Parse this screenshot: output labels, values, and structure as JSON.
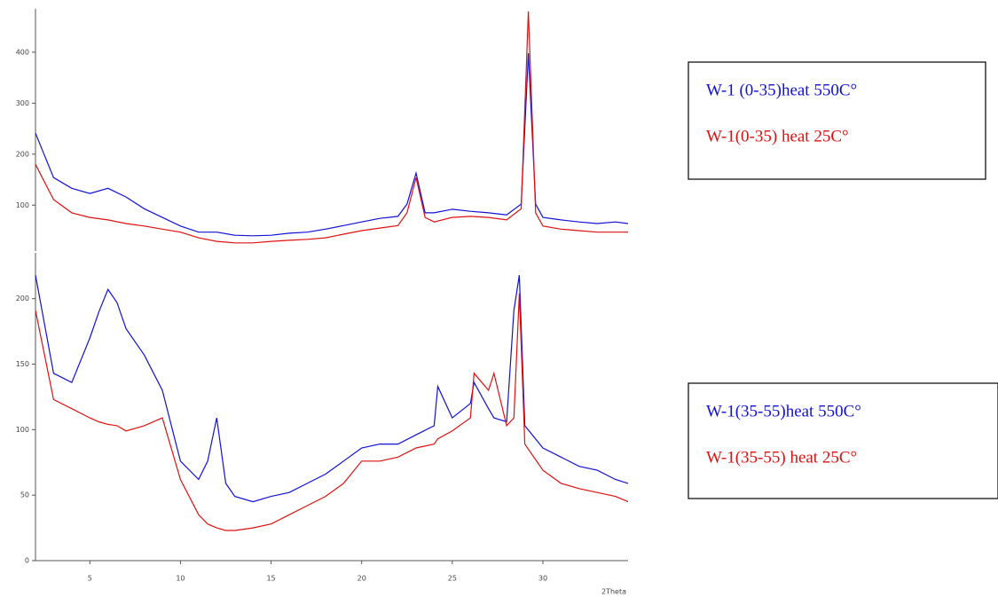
{
  "chart_data": [
    {
      "type": "line",
      "xlim": [
        2,
        34.7
      ],
      "ylim": [
        10,
        485
      ],
      "yticks": [
        100,
        200,
        300,
        400
      ],
      "x": [
        2,
        3,
        4,
        5,
        6,
        7,
        8,
        9,
        10,
        11,
        12,
        13,
        14,
        15,
        16,
        17,
        18,
        19,
        20,
        21,
        22,
        22.5,
        23,
        23.5,
        24,
        25,
        26,
        27,
        28,
        28.8,
        29.2,
        29.6,
        30,
        31,
        32,
        33,
        34,
        34.7
      ],
      "series": [
        {
          "name": "W-1 (0-35)heat 550C°",
          "color": "#1010d8",
          "values": [
            241,
            154,
            133,
            123,
            133,
            116,
            93,
            76,
            59,
            47,
            47,
            41,
            40,
            41,
            45,
            47,
            53,
            60,
            67,
            74,
            78,
            102,
            163,
            85,
            85,
            92,
            88,
            85,
            81,
            102,
            398,
            102,
            76,
            71,
            67,
            64,
            67,
            64
          ]
        },
        {
          "name": "W-1(0-35) heat 25C°",
          "color": "#e01010",
          "values": [
            180,
            111,
            85,
            76,
            71,
            64,
            59,
            53,
            47,
            36,
            29,
            26,
            26,
            29,
            31,
            33,
            36,
            43,
            50,
            55,
            60,
            85,
            154,
            76,
            67,
            76,
            78,
            76,
            71,
            93,
            480,
            85,
            59,
            53,
            50,
            47,
            47,
            47
          ]
        }
      ]
    },
    {
      "type": "line",
      "xlim": [
        2,
        34.7
      ],
      "ylim": [
        0,
        235
      ],
      "yticks": [
        0,
        50,
        100,
        150,
        200
      ],
      "xticks": [
        5,
        10,
        15,
        20,
        25,
        30
      ],
      "x_label": "2Theta",
      "x": [
        2,
        3,
        4,
        5,
        5.5,
        6,
        6.5,
        7,
        8,
        9,
        10,
        11,
        11.5,
        12,
        12.5,
        13,
        14,
        15,
        16,
        17,
        18,
        19,
        20,
        21,
        22,
        23,
        24,
        24.2,
        25,
        26,
        26.2,
        27,
        27.3,
        28,
        28.4,
        28.7,
        29,
        30,
        31,
        32,
        33,
        34,
        34.7
      ],
      "series": [
        {
          "name": "W-1(35-55)heat 550C°",
          "color": "#1010d8",
          "values": [
            218,
            143,
            136,
            170,
            190,
            207,
            197,
            177,
            157,
            130,
            76,
            62,
            76,
            109,
            59,
            49,
            45,
            49,
            52,
            59,
            66,
            76,
            86,
            89,
            89,
            96,
            103,
            133,
            109,
            120,
            136,
            116,
            109,
            106,
            191,
            218,
            103,
            86,
            79,
            72,
            69,
            62,
            59
          ]
        },
        {
          "name": "W-1(35-55) heat 25C°",
          "color": "#e01010",
          "values": [
            191,
            123,
            116,
            109,
            106,
            104,
            103,
            99,
            103,
            109,
            62,
            35,
            28,
            25,
            23,
            23,
            25,
            28,
            35,
            42,
            49,
            59,
            76,
            76,
            79,
            86,
            89,
            93,
            99,
            109,
            143,
            130,
            143,
            103,
            109,
            204,
            89,
            69,
            59,
            55,
            52,
            49,
            45
          ]
        }
      ]
    }
  ]
}
